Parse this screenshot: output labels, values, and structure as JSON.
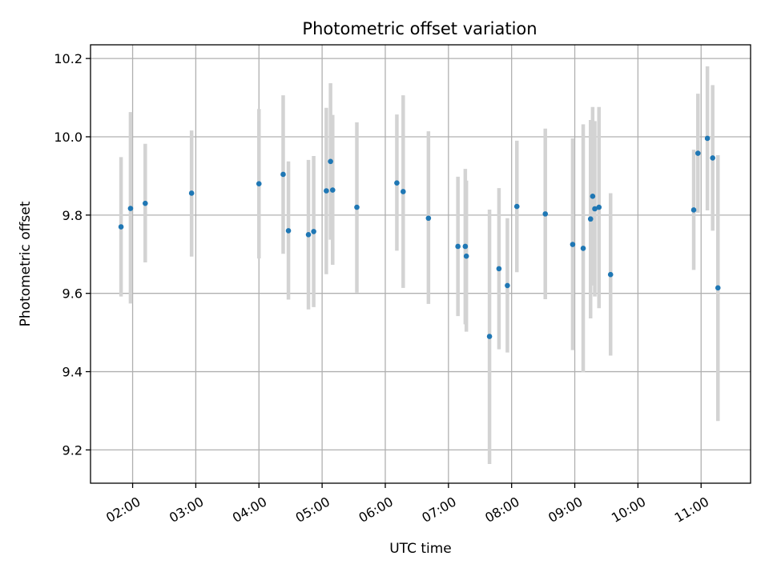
{
  "chart_data": {
    "type": "scatter",
    "title": "Photometric offset variation",
    "xlabel": "UTC time",
    "ylabel": "Photometric offset",
    "xlim": [
      "01:20",
      "11:47"
    ],
    "ylim": [
      9.115,
      10.235
    ],
    "grid": true,
    "x_ticks": [
      "02:00",
      "03:00",
      "04:00",
      "05:00",
      "06:00",
      "07:00",
      "08:00",
      "09:00",
      "10:00",
      "11:00"
    ],
    "y_ticks": [
      "9.2",
      "9.4",
      "9.6",
      "9.8",
      "10.0",
      "10.2"
    ],
    "colors": {
      "point": "#1f77b4",
      "errorbar": "#d3d3d3"
    },
    "points": [
      {
        "x": "01:49",
        "y": 9.77,
        "ylow": 9.592,
        "yhigh": 9.948
      },
      {
        "x": "01:58",
        "y": 9.817,
        "ylow": 9.574,
        "yhigh": 10.063
      },
      {
        "x": "02:12",
        "y": 9.83,
        "ylow": 9.679,
        "yhigh": 9.982
      },
      {
        "x": "02:56",
        "y": 9.856,
        "ylow": 9.694,
        "yhigh": 10.016
      },
      {
        "x": "04:00",
        "y": 9.88,
        "ylow": 9.689,
        "yhigh": 10.071
      },
      {
        "x": "04:23",
        "y": 9.904,
        "ylow": 9.701,
        "yhigh": 10.106
      },
      {
        "x": "04:28",
        "y": 9.76,
        "ylow": 9.584,
        "yhigh": 9.937
      },
      {
        "x": "04:47",
        "y": 9.75,
        "ylow": 9.559,
        "yhigh": 9.941
      },
      {
        "x": "04:52",
        "y": 9.758,
        "ylow": 9.565,
        "yhigh": 9.951
      },
      {
        "x": "05:04",
        "y": 9.862,
        "ylow": 9.649,
        "yhigh": 10.074
      },
      {
        "x": "05:08",
        "y": 9.937,
        "ylow": 9.737,
        "yhigh": 10.137
      },
      {
        "x": "05:10",
        "y": 9.864,
        "ylow": 9.673,
        "yhigh": 10.056
      },
      {
        "x": "05:33",
        "y": 9.82,
        "ylow": 9.602,
        "yhigh": 10.037
      },
      {
        "x": "06:11",
        "y": 9.882,
        "ylow": 9.709,
        "yhigh": 10.057
      },
      {
        "x": "06:17",
        "y": 9.86,
        "ylow": 9.614,
        "yhigh": 10.106
      },
      {
        "x": "06:41",
        "y": 9.792,
        "ylow": 9.573,
        "yhigh": 10.014
      },
      {
        "x": "07:09",
        "y": 9.72,
        "ylow": 9.542,
        "yhigh": 9.898
      },
      {
        "x": "07:16",
        "y": 9.72,
        "ylow": 9.521,
        "yhigh": 9.918
      },
      {
        "x": "07:17",
        "y": 9.695,
        "ylow": 9.502,
        "yhigh": 9.888
      },
      {
        "x": "07:39",
        "y": 9.49,
        "ylow": 9.164,
        "yhigh": 9.814
      },
      {
        "x": "07:48",
        "y": 9.663,
        "ylow": 9.457,
        "yhigh": 9.869
      },
      {
        "x": "07:56",
        "y": 9.62,
        "ylow": 9.449,
        "yhigh": 9.792
      },
      {
        "x": "08:05",
        "y": 9.822,
        "ylow": 9.654,
        "yhigh": 9.99
      },
      {
        "x": "08:32",
        "y": 9.803,
        "ylow": 9.585,
        "yhigh": 10.021
      },
      {
        "x": "08:58",
        "y": 9.725,
        "ylow": 9.455,
        "yhigh": 9.996
      },
      {
        "x": "09:08",
        "y": 9.715,
        "ylow": 9.399,
        "yhigh": 10.032
      },
      {
        "x": "09:15",
        "y": 9.79,
        "ylow": 9.536,
        "yhigh": 10.043
      },
      {
        "x": "09:17",
        "y": 9.848,
        "ylow": 9.62,
        "yhigh": 10.076
      },
      {
        "x": "09:19",
        "y": 9.816,
        "ylow": 9.592,
        "yhigh": 10.04
      },
      {
        "x": "09:23",
        "y": 9.82,
        "ylow": 9.562,
        "yhigh": 10.076
      },
      {
        "x": "09:34",
        "y": 9.648,
        "ylow": 9.441,
        "yhigh": 9.856
      },
      {
        "x": "10:53",
        "y": 9.813,
        "ylow": 9.66,
        "yhigh": 9.967
      },
      {
        "x": "10:57",
        "y": 9.958,
        "ylow": 9.806,
        "yhigh": 10.11
      },
      {
        "x": "11:06",
        "y": 9.996,
        "ylow": 9.812,
        "yhigh": 10.18
      },
      {
        "x": "11:11",
        "y": 9.946,
        "ylow": 9.76,
        "yhigh": 10.132
      },
      {
        "x": "11:16",
        "y": 9.614,
        "ylow": 9.274,
        "yhigh": 9.953
      }
    ]
  }
}
